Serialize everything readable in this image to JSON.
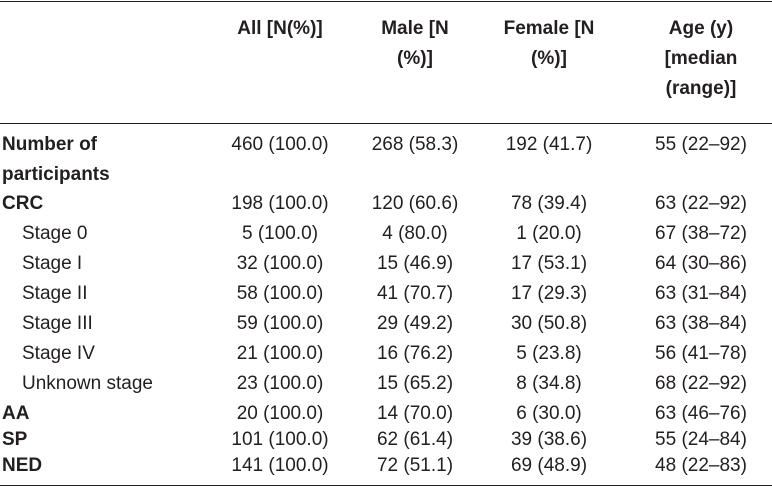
{
  "table": {
    "headers": {
      "all": "All [N(%)]",
      "male": [
        "Male [N",
        "(%)]"
      ],
      "female": [
        "Female [N",
        "(%)]"
      ],
      "age": [
        "Age (y)",
        "[median",
        "(range)]"
      ]
    },
    "rows": [
      {
        "label": [
          "Number of",
          "participants"
        ],
        "all": "460 (100.0)",
        "male": "268 (58.3)",
        "female": "192 (41.7)",
        "age": "55 (22–92)"
      },
      {
        "label": "CRC",
        "all": "198 (100.0)",
        "male": "120 (60.6)",
        "female": "78 (39.4)",
        "age": "63 (22–92)"
      },
      {
        "label": "Stage 0",
        "all": "5 (100.0)",
        "male": "4 (80.0)",
        "female": "1 (20.0)",
        "age": "67 (38–72)"
      },
      {
        "label": "Stage I",
        "all": "32 (100.0)",
        "male": "15 (46.9)",
        "female": "17 (53.1)",
        "age": "64 (30–86)"
      },
      {
        "label": "Stage II",
        "all": "58 (100.0)",
        "male": "41 (70.7)",
        "female": "17 (29.3)",
        "age": "63 (31–84)"
      },
      {
        "label": "Stage III",
        "all": "59 (100.0)",
        "male": "29 (49.2)",
        "female": "30 (50.8)",
        "age": "63 (38–84)"
      },
      {
        "label": "Stage IV",
        "all": "21 (100.0)",
        "male": "16 (76.2)",
        "female": "5 (23.8)",
        "age": "56 (41–78)"
      },
      {
        "label": "Unknown stage",
        "all": "23 (100.0)",
        "male": "15 (65.2)",
        "female": "8 (34.8)",
        "age": "68 (22–92)"
      },
      {
        "label": "AA",
        "all": "20 (100.0)",
        "male": "14 (70.0)",
        "female": "6 (30.0)",
        "age": "63 (46–76)"
      },
      {
        "label": "SP",
        "all": "101 (100.0)",
        "male": "62 (61.4)",
        "female": "39 (38.6)",
        "age": "55 (24–84)"
      },
      {
        "label": "NED",
        "all": "141 (100.0)",
        "male": "72 (51.1)",
        "female": "69 (48.9)",
        "age": "48 (22–83)"
      }
    ]
  }
}
